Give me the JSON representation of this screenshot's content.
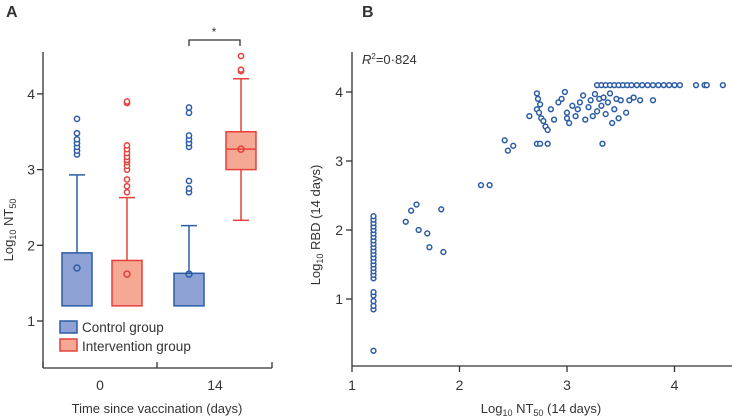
{
  "colors": {
    "control_stroke": "#2b5da6",
    "control_fill": "#8fa2d6",
    "intervention_stroke": "#e5403a",
    "intervention_fill": "#f5a994",
    "axis": "#333333"
  },
  "chart_data": [
    {
      "panel": "A",
      "type": "box",
      "ylabel_main": "Log",
      "ylabel_sub1": "10",
      "ylabel_mid": " NT",
      "ylabel_sub2": "50",
      "xlabel": "Time since vaccination (days)",
      "categories": [
        "0",
        "14"
      ],
      "yticks": [
        "1",
        "2",
        "3",
        "4"
      ],
      "ylim": [
        0.5,
        4.6
      ],
      "legend": [
        "Control group",
        "Intervention group"
      ],
      "legend_position": "bottom-left",
      "significance": "*",
      "boxes": [
        {
          "group": "Control group",
          "time": "0",
          "q1": 1.2,
          "median": 1.2,
          "q3": 1.9,
          "mean": 1.7,
          "whisker_low": 1.2,
          "whisker_high": 2.93,
          "outliers": [
            3.2,
            3.25,
            3.3,
            3.35,
            3.4,
            3.48,
            3.67
          ]
        },
        {
          "group": "Intervention group",
          "time": "0",
          "q1": 1.2,
          "median": 1.2,
          "q3": 1.8,
          "mean": 1.62,
          "whisker_low": 1.2,
          "whisker_high": 2.63,
          "outliers": [
            2.7,
            2.78,
            2.87,
            3.0,
            3.05,
            3.1,
            3.13,
            3.17,
            3.22,
            3.27,
            3.32,
            3.88,
            3.9
          ]
        },
        {
          "group": "Control group",
          "time": "14",
          "q1": 1.2,
          "median": 1.2,
          "q3": 1.63,
          "mean": 1.62,
          "whisker_low": 1.2,
          "whisker_high": 2.26,
          "outliers": [
            2.7,
            2.75,
            2.85,
            3.3,
            3.35,
            3.4,
            3.45,
            3.75,
            3.82
          ]
        },
        {
          "group": "Intervention group",
          "time": "14",
          "q1": 3.0,
          "median": 3.27,
          "q3": 3.5,
          "mean": 3.27,
          "whisker_low": 2.33,
          "whisker_high": 4.2,
          "outliers": [
            4.3,
            4.32,
            4.5
          ]
        }
      ]
    },
    {
      "panel": "B",
      "type": "scatter",
      "annotation_r": "R",
      "annotation_sup": "2",
      "annotation_val": "=0·824",
      "xlabel_main": "Log",
      "xlabel_sub1": "10",
      "xlabel_mid": " NT",
      "xlabel_sub2": "50",
      "xlabel_end": " (14 days)",
      "ylabel_main": "Log",
      "ylabel_sub1": "10",
      "ylabel_end": " RBD (14 days)",
      "xticks": [
        "1",
        "2",
        "3",
        "4"
      ],
      "yticks": [
        "0",
        "1",
        "2",
        "3",
        "4"
      ],
      "xlim": [
        1,
        4.55
      ],
      "ylim": [
        0,
        4.35
      ],
      "points": [
        [
          1.2,
          0.25
        ],
        [
          1.2,
          0.85
        ],
        [
          1.2,
          0.9
        ],
        [
          1.2,
          0.97
        ],
        [
          1.2,
          1.05
        ],
        [
          1.2,
          1.1
        ],
        [
          1.2,
          1.3
        ],
        [
          1.2,
          1.35
        ],
        [
          1.2,
          1.4
        ],
        [
          1.2,
          1.45
        ],
        [
          1.2,
          1.5
        ],
        [
          1.2,
          1.55
        ],
        [
          1.2,
          1.6
        ],
        [
          1.2,
          1.65
        ],
        [
          1.2,
          1.7
        ],
        [
          1.2,
          1.75
        ],
        [
          1.2,
          1.8
        ],
        [
          1.2,
          1.85
        ],
        [
          1.2,
          1.9
        ],
        [
          1.2,
          1.95
        ],
        [
          1.2,
          2.0
        ],
        [
          1.2,
          2.05
        ],
        [
          1.2,
          2.1
        ],
        [
          1.2,
          2.15
        ],
        [
          1.2,
          2.2
        ],
        [
          1.5,
          2.12
        ],
        [
          1.55,
          2.28
        ],
        [
          1.6,
          2.37
        ],
        [
          1.62,
          2.0
        ],
        [
          1.7,
          1.95
        ],
        [
          1.72,
          1.75
        ],
        [
          1.83,
          2.3
        ],
        [
          1.85,
          1.68
        ],
        [
          2.2,
          2.65
        ],
        [
          2.28,
          2.65
        ],
        [
          2.42,
          3.3
        ],
        [
          2.45,
          3.15
        ],
        [
          2.5,
          3.22
        ],
        [
          2.65,
          3.65
        ],
        [
          2.72,
          3.25
        ],
        [
          2.75,
          3.25
        ],
        [
          2.82,
          3.25
        ],
        [
          2.72,
          3.98
        ],
        [
          2.73,
          3.9
        ],
        [
          2.75,
          3.82
        ],
        [
          2.72,
          3.75
        ],
        [
          2.74,
          3.7
        ],
        [
          2.76,
          3.62
        ],
        [
          2.78,
          3.58
        ],
        [
          2.8,
          3.5
        ],
        [
          2.82,
          3.45
        ],
        [
          2.85,
          3.75
        ],
        [
          2.88,
          3.6
        ],
        [
          2.92,
          3.85
        ],
        [
          2.95,
          3.9
        ],
        [
          2.98,
          4.0
        ],
        [
          3.0,
          3.7
        ],
        [
          3.0,
          3.62
        ],
        [
          3.02,
          3.55
        ],
        [
          3.05,
          3.8
        ],
        [
          3.08,
          3.65
        ],
        [
          3.1,
          3.75
        ],
        [
          3.12,
          3.85
        ],
        [
          3.15,
          3.95
        ],
        [
          3.17,
          3.6
        ],
        [
          3.2,
          3.78
        ],
        [
          3.22,
          3.88
        ],
        [
          3.24,
          3.65
        ],
        [
          3.26,
          3.97
        ],
        [
          3.28,
          3.72
        ],
        [
          3.3,
          3.9
        ],
        [
          3.32,
          3.8
        ],
        [
          3.33,
          3.25
        ],
        [
          3.34,
          3.92
        ],
        [
          3.36,
          3.68
        ],
        [
          3.38,
          3.85
        ],
        [
          3.4,
          3.98
        ],
        [
          3.42,
          3.55
        ],
        [
          3.44,
          3.75
        ],
        [
          3.46,
          3.9
        ],
        [
          3.48,
          3.62
        ],
        [
          3.5,
          3.88
        ],
        [
          3.55,
          3.7
        ],
        [
          3.58,
          3.88
        ],
        [
          3.62,
          3.92
        ],
        [
          3.68,
          3.88
        ],
        [
          3.8,
          3.88
        ],
        [
          3.28,
          4.1
        ],
        [
          3.32,
          4.1
        ],
        [
          3.36,
          4.1
        ],
        [
          3.4,
          4.1
        ],
        [
          3.44,
          4.1
        ],
        [
          3.48,
          4.1
        ],
        [
          3.52,
          4.1
        ],
        [
          3.56,
          4.1
        ],
        [
          3.6,
          4.1
        ],
        [
          3.65,
          4.1
        ],
        [
          3.7,
          4.1
        ],
        [
          3.75,
          4.1
        ],
        [
          3.8,
          4.1
        ],
        [
          3.85,
          4.1
        ],
        [
          3.9,
          4.1
        ],
        [
          3.95,
          4.1
        ],
        [
          4.0,
          4.1
        ],
        [
          4.05,
          4.1
        ],
        [
          4.2,
          4.1
        ],
        [
          4.28,
          4.1
        ],
        [
          4.3,
          4.1
        ],
        [
          4.45,
          4.1
        ]
      ]
    }
  ],
  "panel_labels": [
    "A",
    "B"
  ]
}
